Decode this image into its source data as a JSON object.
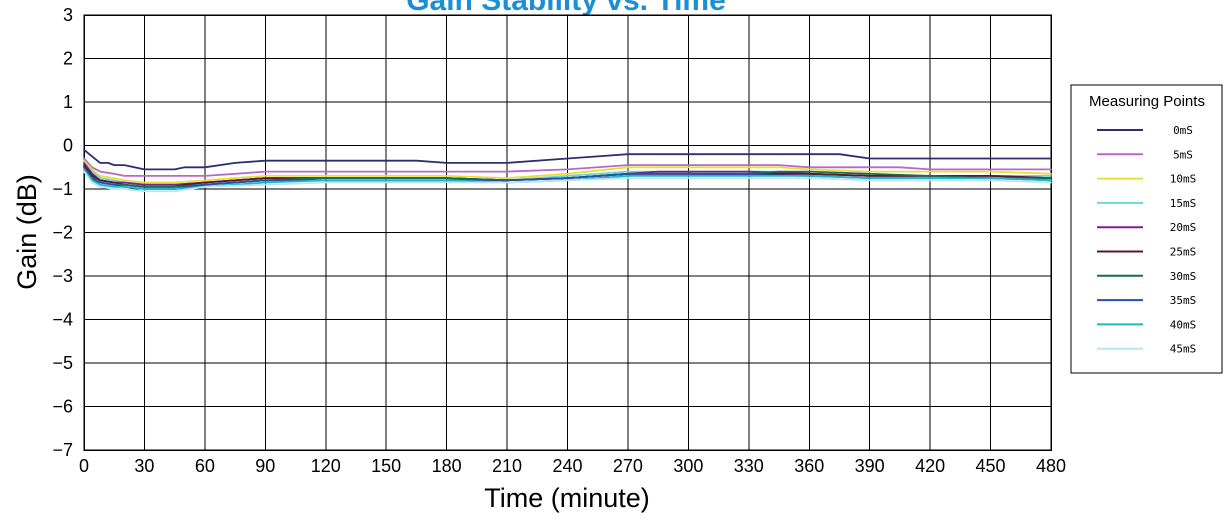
{
  "chart_data": {
    "type": "line",
    "title": "Gain Stability vs. Time",
    "xlabel": "Time (minute)",
    "ylabel": "Gain (dB)",
    "xlim": [
      0,
      480
    ],
    "ylim": [
      -7,
      3
    ],
    "x_ticks": [
      "0",
      "30",
      "60",
      "90",
      "120",
      "150",
      "180",
      "210",
      "240",
      "270",
      "300",
      "330",
      "360",
      "390",
      "420",
      "450",
      "480"
    ],
    "y_ticks": [
      "3",
      "2",
      "1",
      "0",
      "−1",
      "−2",
      "−3",
      "−4",
      "−5",
      "−6",
      "−7"
    ],
    "y_tick_values": [
      3,
      2,
      1,
      0,
      -1,
      -2,
      -3,
      -4,
      -5,
      -6,
      -7
    ],
    "grid": true,
    "legend_title": "Measuring Points",
    "legend_position": "right",
    "series": [
      {
        "name": "0mS",
        "color": "#2e2e6e",
        "x": [
          0,
          4,
          8,
          12,
          15,
          20,
          30,
          45,
          50,
          55,
          60,
          75,
          90,
          120,
          150,
          165,
          180,
          195,
          210,
          240,
          255,
          270,
          300,
          345,
          360,
          375,
          390,
          420,
          450,
          480
        ],
        "y": [
          -0.1,
          -0.25,
          -0.4,
          -0.4,
          -0.45,
          -0.45,
          -0.55,
          -0.55,
          -0.5,
          -0.5,
          -0.5,
          -0.4,
          -0.35,
          -0.35,
          -0.35,
          -0.35,
          -0.4,
          -0.4,
          -0.4,
          -0.3,
          -0.25,
          -0.2,
          -0.2,
          -0.2,
          -0.2,
          -0.2,
          -0.3,
          -0.3,
          -0.3,
          -0.3
        ]
      },
      {
        "name": "5mS",
        "color": "#b868c8",
        "x": [
          0,
          4,
          8,
          15,
          20,
          30,
          45,
          60,
          75,
          90,
          120,
          150,
          180,
          210,
          240,
          270,
          300,
          345,
          360,
          390,
          405,
          420,
          450,
          480
        ],
        "y": [
          -0.3,
          -0.5,
          -0.6,
          -0.65,
          -0.7,
          -0.7,
          -0.7,
          -0.7,
          -0.65,
          -0.6,
          -0.6,
          -0.6,
          -0.6,
          -0.6,
          -0.55,
          -0.45,
          -0.45,
          -0.45,
          -0.5,
          -0.5,
          -0.5,
          -0.55,
          -0.55,
          -0.55
        ]
      },
      {
        "name": "10mS",
        "color": "#e8e030",
        "x": [
          0,
          4,
          8,
          15,
          20,
          30,
          45,
          60,
          90,
          120,
          150,
          180,
          210,
          240,
          270,
          300,
          345,
          360,
          390,
          420,
          450,
          480
        ],
        "y": [
          -0.35,
          -0.55,
          -0.7,
          -0.75,
          -0.8,
          -0.85,
          -0.85,
          -0.8,
          -0.7,
          -0.7,
          -0.7,
          -0.7,
          -0.75,
          -0.65,
          -0.5,
          -0.5,
          -0.5,
          -0.55,
          -0.6,
          -0.6,
          -0.6,
          -0.65
        ]
      },
      {
        "name": "15mS",
        "color": "#6ad6d8",
        "x": [
          0,
          4,
          8,
          15,
          20,
          30,
          45,
          60,
          90,
          120,
          150,
          180,
          210,
          240,
          270,
          300,
          345,
          360,
          390,
          420,
          450,
          480
        ],
        "y": [
          -0.4,
          -0.6,
          -0.75,
          -0.8,
          -0.85,
          -0.9,
          -0.9,
          -0.85,
          -0.75,
          -0.75,
          -0.75,
          -0.75,
          -0.8,
          -0.7,
          -0.6,
          -0.6,
          -0.6,
          -0.65,
          -0.7,
          -0.7,
          -0.7,
          -0.7
        ]
      },
      {
        "name": "20mS",
        "color": "#7a2090",
        "x": [
          0,
          4,
          8,
          15,
          20,
          30,
          45,
          60,
          90,
          120,
          150,
          180,
          210,
          240,
          270,
          285,
          300,
          330,
          360,
          390,
          420,
          450,
          480
        ],
        "y": [
          -0.4,
          -0.65,
          -0.8,
          -0.85,
          -0.85,
          -0.9,
          -0.9,
          -0.85,
          -0.75,
          -0.75,
          -0.75,
          -0.75,
          -0.8,
          -0.75,
          -0.65,
          -0.6,
          -0.6,
          -0.6,
          -0.65,
          -0.7,
          -0.7,
          -0.7,
          -0.75
        ]
      },
      {
        "name": "25mS",
        "color": "#5a1830",
        "x": [
          0,
          4,
          8,
          15,
          20,
          30,
          45,
          50,
          60,
          90,
          120,
          150,
          180,
          210,
          240,
          270,
          300,
          360,
          390,
          420,
          450,
          480
        ],
        "y": [
          -0.45,
          -0.7,
          -0.8,
          -0.85,
          -0.9,
          -0.95,
          -0.95,
          -0.9,
          -0.85,
          -0.75,
          -0.75,
          -0.75,
          -0.75,
          -0.8,
          -0.75,
          -0.65,
          -0.65,
          -0.65,
          -0.7,
          -0.7,
          -0.7,
          -0.75
        ]
      },
      {
        "name": "30mS",
        "color": "#1a6a5a",
        "x": [
          0,
          4,
          8,
          15,
          20,
          30,
          45,
          60,
          90,
          120,
          150,
          180,
          210,
          240,
          270,
          300,
          330,
          345,
          360,
          390,
          420,
          450,
          480
        ],
        "y": [
          -0.5,
          -0.75,
          -0.85,
          -0.9,
          -0.9,
          -0.95,
          -0.95,
          -0.9,
          -0.8,
          -0.75,
          -0.75,
          -0.75,
          -0.8,
          -0.75,
          -0.65,
          -0.65,
          -0.65,
          -0.6,
          -0.6,
          -0.65,
          -0.7,
          -0.75,
          -0.75
        ]
      },
      {
        "name": "35mS",
        "color": "#2850a8",
        "x": [
          0,
          4,
          8,
          15,
          20,
          30,
          45,
          60,
          90,
          120,
          150,
          180,
          210,
          240,
          270,
          300,
          360,
          390,
          420,
          450,
          480
        ],
        "y": [
          -0.5,
          -0.8,
          -0.85,
          -0.9,
          -0.95,
          -1.0,
          -1.0,
          -0.9,
          -0.8,
          -0.8,
          -0.8,
          -0.8,
          -0.8,
          -0.75,
          -0.65,
          -0.65,
          -0.7,
          -0.75,
          -0.75,
          -0.75,
          -0.8
        ]
      },
      {
        "name": "40mS",
        "color": "#20b8c8",
        "x": [
          0,
          4,
          8,
          15,
          20,
          30,
          45,
          60,
          90,
          120,
          150,
          180,
          210,
          240,
          270,
          300,
          360,
          390,
          420,
          450,
          480
        ],
        "y": [
          -0.55,
          -0.8,
          -0.9,
          -0.95,
          -0.95,
          -1.0,
          -1.0,
          -0.95,
          -0.85,
          -0.8,
          -0.8,
          -0.8,
          -0.85,
          -0.8,
          -0.7,
          -0.7,
          -0.7,
          -0.75,
          -0.75,
          -0.75,
          -0.8
        ]
      },
      {
        "name": "45mS",
        "color": "#bde4f0",
        "x": [
          0,
          4,
          8,
          15,
          20,
          30,
          45,
          60,
          90,
          120,
          150,
          180,
          210,
          240,
          270,
          300,
          360,
          390,
          420,
          450,
          480
        ],
        "y": [
          -0.6,
          -0.85,
          -0.95,
          -1.0,
          -1.0,
          -1.05,
          -1.05,
          -0.95,
          -0.9,
          -0.85,
          -0.85,
          -0.85,
          -0.85,
          -0.8,
          -0.75,
          -0.75,
          -0.75,
          -0.8,
          -0.8,
          -0.8,
          -0.85
        ]
      }
    ]
  }
}
